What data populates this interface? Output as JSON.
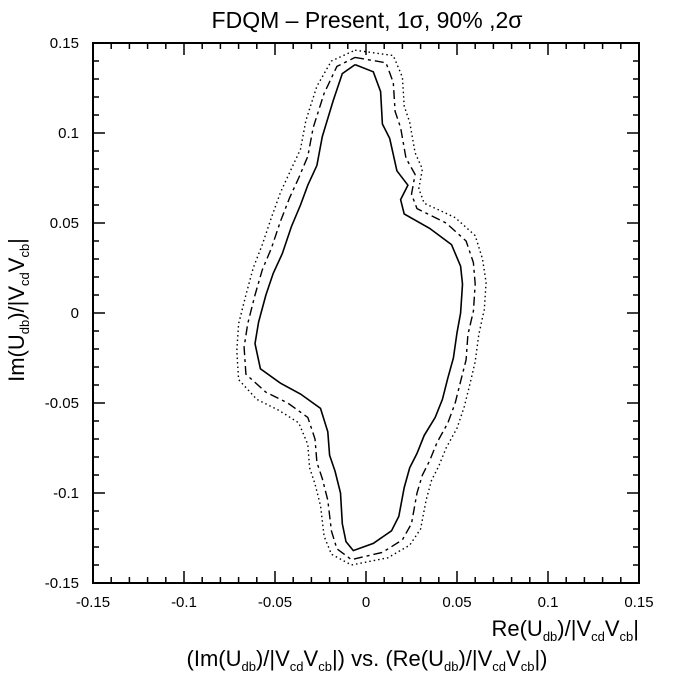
{
  "chart_data": {
    "type": "line",
    "title": "FDQM – Present, 1σ, 90% ,2σ",
    "xlabel": {
      "main": "Re(U",
      "sub1": "db",
      "mid": ")/|V",
      "sub2": "cd",
      "sub3": "V",
      "sub4": "cb",
      "end": "|"
    },
    "ylabel": {
      "main": "Im(U",
      "sub1": "db",
      "mid": ")/|V",
      "sub2": "cd",
      "sub3": "V",
      "sub4": "cb",
      "end": "|"
    },
    "caption": {
      "p1": "(Im(U",
      "s1": "db",
      "p2": ")/|V",
      "s2": "cd",
      "p3": "V",
      "s3": "cb",
      "p4": "|) vs. (Re(U",
      "s4": "db",
      "p5": ")/|V",
      "s5": "cd",
      "p6": "V",
      "s6": "cb",
      "p7": "|)"
    },
    "xlim": [
      -0.15,
      0.15
    ],
    "ylim": [
      -0.15,
      0.15
    ],
    "xticks": [
      {
        "value": -0.15,
        "label": "-0.15"
      },
      {
        "value": -0.1,
        "label": "-0.1"
      },
      {
        "value": -0.05,
        "label": "-0.05"
      },
      {
        "value": 0,
        "label": "0"
      },
      {
        "value": 0.05,
        "label": "0.05"
      },
      {
        "value": 0.1,
        "label": "0.1"
      },
      {
        "value": 0.15,
        "label": "0.15"
      }
    ],
    "yticks": [
      {
        "value": -0.15,
        "label": "-0.15"
      },
      {
        "value": -0.1,
        "label": "-0.1"
      },
      {
        "value": -0.05,
        "label": "-0.05"
      },
      {
        "value": 0,
        "label": "0"
      },
      {
        "value": 0.05,
        "label": "0.05"
      },
      {
        "value": 0.1,
        "label": "0.1"
      },
      {
        "value": 0.15,
        "label": "0.15"
      }
    ],
    "grid": false,
    "series": [
      {
        "style": "solid",
        "points": [
          [
            -0.006,
            0.138
          ],
          [
            0.004,
            0.134
          ],
          [
            0.008,
            0.123
          ],
          [
            0.009,
            0.105
          ],
          [
            0.013,
            0.097
          ],
          [
            0.017,
            0.079
          ],
          [
            0.023,
            0.071
          ],
          [
            0.019,
            0.063
          ],
          [
            0.021,
            0.055
          ],
          [
            0.035,
            0.047
          ],
          [
            0.047,
            0.038
          ],
          [
            0.052,
            0.026
          ],
          [
            0.053,
            0.016
          ],
          [
            0.052,
            0.0
          ],
          [
            0.05,
            -0.011
          ],
          [
            0.048,
            -0.025
          ],
          [
            0.045,
            -0.036
          ],
          [
            0.042,
            -0.048
          ],
          [
            0.038,
            -0.058
          ],
          [
            0.032,
            -0.068
          ],
          [
            0.028,
            -0.078
          ],
          [
            0.024,
            -0.086
          ],
          [
            0.021,
            -0.097
          ],
          [
            0.018,
            -0.113
          ],
          [
            0.014,
            -0.121
          ],
          [
            0.004,
            -0.128
          ],
          [
            -0.007,
            -0.132
          ],
          [
            -0.011,
            -0.127
          ],
          [
            -0.013,
            -0.117
          ],
          [
            -0.014,
            -0.1
          ],
          [
            -0.017,
            -0.088
          ],
          [
            -0.02,
            -0.079
          ],
          [
            -0.021,
            -0.066
          ],
          [
            -0.025,
            -0.053
          ],
          [
            -0.036,
            -0.045
          ],
          [
            -0.047,
            -0.039
          ],
          [
            -0.058,
            -0.031
          ],
          [
            -0.061,
            -0.017
          ],
          [
            -0.059,
            -0.005
          ],
          [
            -0.055,
            0.01
          ],
          [
            -0.051,
            0.022
          ],
          [
            -0.046,
            0.033
          ],
          [
            -0.041,
            0.048
          ],
          [
            -0.036,
            0.06
          ],
          [
            -0.032,
            0.071
          ],
          [
            -0.027,
            0.082
          ],
          [
            -0.024,
            0.098
          ],
          [
            -0.018,
            0.118
          ],
          [
            -0.013,
            0.133
          ],
          [
            -0.006,
            0.138
          ]
        ]
      },
      {
        "style": "dashed",
        "points": [
          [
            -0.006,
            0.142
          ],
          [
            0.011,
            0.139
          ],
          [
            0.015,
            0.128
          ],
          [
            0.016,
            0.112
          ],
          [
            0.019,
            0.103
          ],
          [
            0.022,
            0.086
          ],
          [
            0.027,
            0.077
          ],
          [
            0.025,
            0.066
          ],
          [
            0.028,
            0.058
          ],
          [
            0.044,
            0.05
          ],
          [
            0.055,
            0.04
          ],
          [
            0.059,
            0.028
          ],
          [
            0.06,
            0.016
          ],
          [
            0.059,
            0.001
          ],
          [
            0.056,
            -0.012
          ],
          [
            0.055,
            -0.026
          ],
          [
            0.052,
            -0.038
          ],
          [
            0.049,
            -0.05
          ],
          [
            0.045,
            -0.061
          ],
          [
            0.039,
            -0.072
          ],
          [
            0.035,
            -0.082
          ],
          [
            0.031,
            -0.09
          ],
          [
            0.028,
            -0.1
          ],
          [
            0.025,
            -0.117
          ],
          [
            0.02,
            -0.126
          ],
          [
            0.009,
            -0.133
          ],
          [
            -0.008,
            -0.137
          ],
          [
            -0.016,
            -0.131
          ],
          [
            -0.019,
            -0.121
          ],
          [
            -0.021,
            -0.104
          ],
          [
            -0.024,
            -0.092
          ],
          [
            -0.027,
            -0.083
          ],
          [
            -0.028,
            -0.07
          ],
          [
            -0.032,
            -0.058
          ],
          [
            -0.043,
            -0.05
          ],
          [
            -0.055,
            -0.044
          ],
          [
            -0.066,
            -0.034
          ],
          [
            -0.067,
            -0.019
          ],
          [
            -0.065,
            -0.006
          ],
          [
            -0.061,
            0.01
          ],
          [
            -0.057,
            0.024
          ],
          [
            -0.052,
            0.036
          ],
          [
            -0.047,
            0.051
          ],
          [
            -0.042,
            0.064
          ],
          [
            -0.037,
            0.075
          ],
          [
            -0.032,
            0.087
          ],
          [
            -0.029,
            0.103
          ],
          [
            -0.023,
            0.122
          ],
          [
            -0.016,
            0.137
          ],
          [
            -0.006,
            0.142
          ]
        ]
      },
      {
        "style": "dotted",
        "points": [
          [
            -0.006,
            0.146
          ],
          [
            0.015,
            0.143
          ],
          [
            0.02,
            0.131
          ],
          [
            0.021,
            0.115
          ],
          [
            0.024,
            0.106
          ],
          [
            0.027,
            0.089
          ],
          [
            0.031,
            0.08
          ],
          [
            0.029,
            0.069
          ],
          [
            0.032,
            0.061
          ],
          [
            0.049,
            0.053
          ],
          [
            0.06,
            0.043
          ],
          [
            0.064,
            0.03
          ],
          [
            0.066,
            0.017
          ],
          [
            0.065,
            0.002
          ],
          [
            0.062,
            -0.012
          ],
          [
            0.06,
            -0.027
          ],
          [
            0.057,
            -0.04
          ],
          [
            0.054,
            -0.052
          ],
          [
            0.05,
            -0.064
          ],
          [
            0.044,
            -0.075
          ],
          [
            0.04,
            -0.085
          ],
          [
            0.036,
            -0.093
          ],
          [
            0.033,
            -0.104
          ],
          [
            0.03,
            -0.12
          ],
          [
            0.024,
            -0.129
          ],
          [
            0.012,
            -0.136
          ],
          [
            -0.008,
            -0.14
          ],
          [
            -0.019,
            -0.134
          ],
          [
            -0.023,
            -0.124
          ],
          [
            -0.025,
            -0.107
          ],
          [
            -0.028,
            -0.095
          ],
          [
            -0.031,
            -0.086
          ],
          [
            -0.032,
            -0.073
          ],
          [
            -0.037,
            -0.061
          ],
          [
            -0.048,
            -0.054
          ],
          [
            -0.06,
            -0.048
          ],
          [
            -0.07,
            -0.037
          ],
          [
            -0.071,
            -0.021
          ],
          [
            -0.07,
            -0.006
          ],
          [
            -0.066,
            0.01
          ],
          [
            -0.062,
            0.025
          ],
          [
            -0.057,
            0.038
          ],
          [
            -0.052,
            0.053
          ],
          [
            -0.047,
            0.067
          ],
          [
            -0.042,
            0.078
          ],
          [
            -0.036,
            0.091
          ],
          [
            -0.033,
            0.107
          ],
          [
            -0.027,
            0.126
          ],
          [
            -0.019,
            0.14
          ],
          [
            -0.006,
            0.146
          ]
        ]
      }
    ]
  }
}
